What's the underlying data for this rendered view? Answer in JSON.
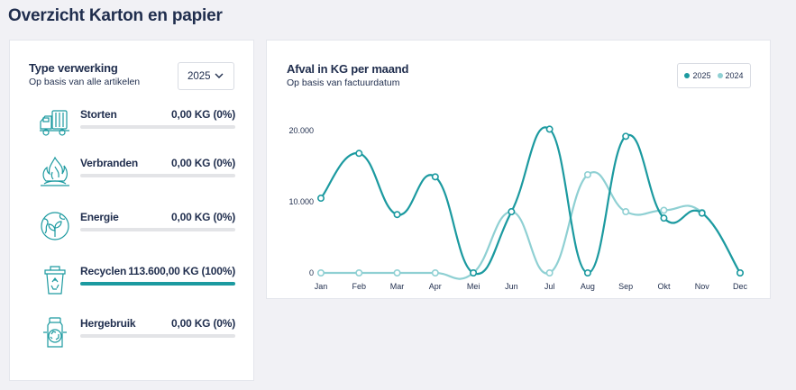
{
  "page": {
    "title": "Overzicht Karton en papier"
  },
  "left_card": {
    "title": "Type verwerking",
    "subtitle": "Op basis van alle artikelen",
    "year_select": {
      "value": "2025"
    },
    "rows": [
      {
        "label": "Storten",
        "value": "0,00 KG (0%)",
        "percent": 0,
        "icon": "garbage-truck-icon"
      },
      {
        "label": "Verbranden",
        "value": "0,00 KG (0%)",
        "percent": 0,
        "icon": "fire-icon"
      },
      {
        "label": "Energie",
        "value": "0,00 KG (0%)",
        "percent": 0,
        "icon": "globe-plant-icon"
      },
      {
        "label": "Recyclen",
        "value": "113.600,00 KG (100%)",
        "percent": 100,
        "icon": "recycle-bin-icon"
      },
      {
        "label": "Hergebruik",
        "value": "0,00 KG (0%)",
        "percent": 0,
        "icon": "reuse-jar-icon"
      }
    ]
  },
  "right_card": {
    "title": "Afval in KG per maand",
    "subtitle": "Op basis van factuurdatum",
    "legend": [
      {
        "label": "2025",
        "color": "#1c9aa0"
      },
      {
        "label": "2024",
        "color": "#8fd0d3"
      }
    ]
  },
  "colors": {
    "accent": "#1c9aa0",
    "accent_light": "#8fd0d3",
    "text": "#1f2d4d"
  },
  "chart_data": {
    "type": "line",
    "title": "Afval in KG per maand",
    "subtitle": "Op basis van factuurdatum",
    "x": [
      "Jan",
      "Feb",
      "Mar",
      "Apr",
      "Mei",
      "Jun",
      "Jul",
      "Aug",
      "Sep",
      "Okt",
      "Nov",
      "Dec"
    ],
    "ytick_labels": [
      "0",
      "10.000",
      "20.000"
    ],
    "yticks": [
      0,
      10000,
      20000
    ],
    "ylim": [
      0,
      20000
    ],
    "series": [
      {
        "name": "2025",
        "color": "#1c9aa0",
        "values": [
          10500,
          16800,
          8200,
          13500,
          0,
          8600,
          20200,
          0,
          19200,
          7700,
          8400,
          0
        ]
      },
      {
        "name": "2024",
        "color": "#8fd0d3",
        "values": [
          0,
          0,
          0,
          0,
          0,
          8600,
          0,
          13800,
          8600,
          8800,
          8500,
          0
        ]
      }
    ],
    "legend_position": "top-right",
    "grid": false
  }
}
